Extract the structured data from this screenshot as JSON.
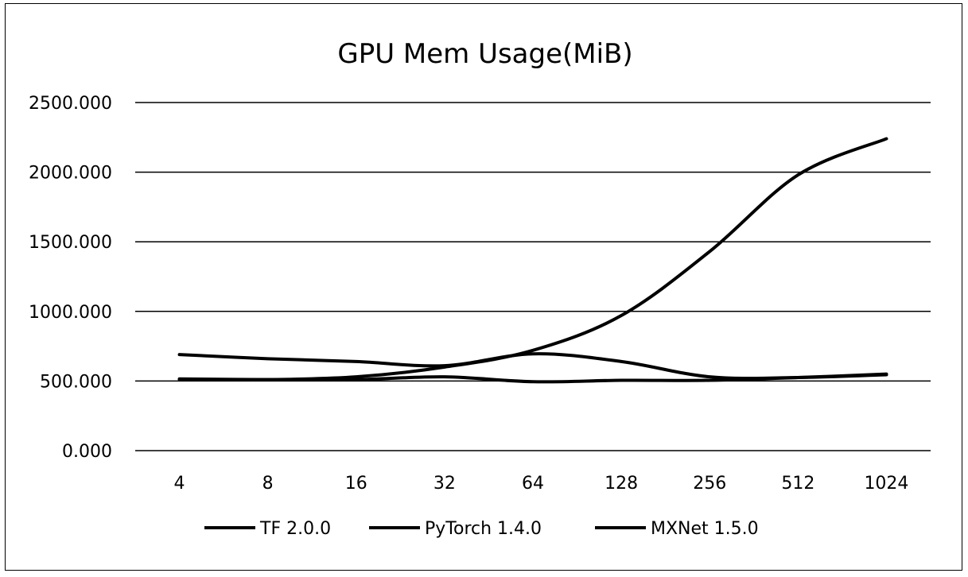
{
  "chart_data": {
    "type": "line",
    "title": "GPU Mem Usage(MiB)",
    "xlabel": "",
    "ylabel": "",
    "categories": [
      "4",
      "8",
      "16",
      "32",
      "64",
      "128",
      "256",
      "512",
      "1024"
    ],
    "ylim": [
      0,
      2500
    ],
    "yticks": [
      "0.000",
      "500.000",
      "1000.000",
      "1500.000",
      "2000.000",
      "2500.000"
    ],
    "ytick_values": [
      0,
      500,
      1000,
      1500,
      2000,
      2500
    ],
    "grid": true,
    "legend_position": "bottom",
    "series": [
      {
        "name": "TF 2.0.0",
        "values": [
          510,
          510,
          530,
          600,
          720,
          970,
          1430,
          1980,
          2240
        ],
        "color": "#000000"
      },
      {
        "name": "PyTorch 1.4.0",
        "values": [
          690,
          660,
          640,
          610,
          695,
          640,
          530,
          525,
          545
        ],
        "color": "#000000"
      },
      {
        "name": "MXNet 1.5.0",
        "values": [
          515,
          510,
          510,
          530,
          495,
          505,
          505,
          525,
          550
        ],
        "color": "#000000"
      }
    ]
  }
}
